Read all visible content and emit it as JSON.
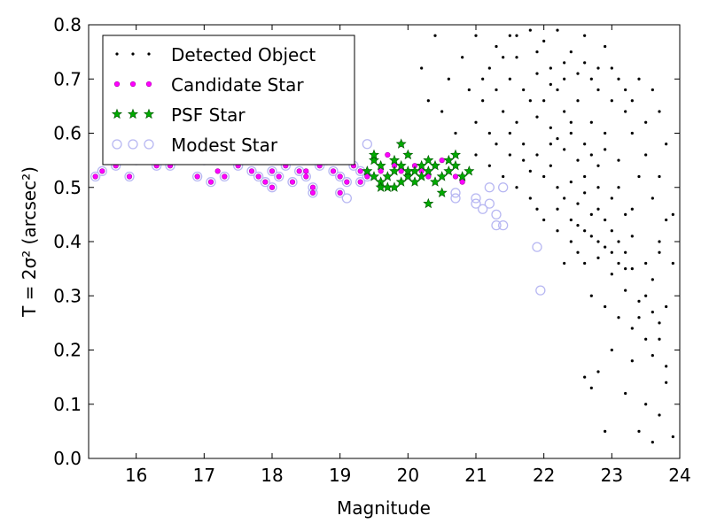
{
  "chart_data": {
    "type": "scatter",
    "xlabel": "Magnitude",
    "ylabel": "T = 2σ² (arcsec²)",
    "xlim": [
      15.3,
      24.0
    ],
    "ylim": [
      0.0,
      0.8
    ],
    "xticks": [
      16,
      17,
      18,
      19,
      20,
      21,
      22,
      23,
      24
    ],
    "yticks": [
      0.0,
      0.1,
      0.2,
      0.3,
      0.4,
      0.5,
      0.6,
      0.7,
      0.8
    ],
    "grid": false,
    "legend_position": "top-left",
    "colors": {
      "detected": "#000000",
      "candidate": "#ff00ff",
      "psf": "#00aa00",
      "modest": "#b7b7f2"
    },
    "series": [
      {
        "name": "Detected Object",
        "marker": "dot",
        "points": [
          [
            21.0,
            0.78
          ],
          [
            21.3,
            0.76
          ],
          [
            21.6,
            0.74
          ],
          [
            21.8,
            0.79
          ],
          [
            22.0,
            0.77
          ],
          [
            22.2,
            0.79
          ],
          [
            22.6,
            0.78
          ],
          [
            22.9,
            0.76
          ],
          [
            21.2,
            0.72
          ],
          [
            21.5,
            0.7
          ],
          [
            21.7,
            0.68
          ],
          [
            21.9,
            0.71
          ],
          [
            22.1,
            0.69
          ],
          [
            22.3,
            0.73
          ],
          [
            22.5,
            0.71
          ],
          [
            22.7,
            0.7
          ],
          [
            23.0,
            0.72
          ],
          [
            23.2,
            0.68
          ],
          [
            20.4,
            0.78
          ],
          [
            20.8,
            0.74
          ],
          [
            21.1,
            0.66
          ],
          [
            21.4,
            0.64
          ],
          [
            21.6,
            0.62
          ],
          [
            21.9,
            0.63
          ],
          [
            22.1,
            0.61
          ],
          [
            22.2,
            0.59
          ],
          [
            22.3,
            0.57
          ],
          [
            22.4,
            0.6
          ],
          [
            22.5,
            0.55
          ],
          [
            22.6,
            0.58
          ],
          [
            22.7,
            0.56
          ],
          [
            22.8,
            0.54
          ],
          [
            22.9,
            0.57
          ],
          [
            23.1,
            0.55
          ],
          [
            23.3,
            0.6
          ],
          [
            23.5,
            0.62
          ],
          [
            23.7,
            0.64
          ],
          [
            21.3,
            0.58
          ],
          [
            21.5,
            0.56
          ],
          [
            21.7,
            0.55
          ],
          [
            21.8,
            0.53
          ],
          [
            22.0,
            0.52
          ],
          [
            22.1,
            0.54
          ],
          [
            22.2,
            0.5
          ],
          [
            22.3,
            0.48
          ],
          [
            22.4,
            0.51
          ],
          [
            22.5,
            0.47
          ],
          [
            22.6,
            0.49
          ],
          [
            22.7,
            0.45
          ],
          [
            22.8,
            0.46
          ],
          [
            22.9,
            0.44
          ],
          [
            23.0,
            0.42
          ],
          [
            23.1,
            0.4
          ],
          [
            23.2,
            0.38
          ],
          [
            23.3,
            0.41
          ],
          [
            23.5,
            0.36
          ],
          [
            23.7,
            0.4
          ],
          [
            22.0,
            0.44
          ],
          [
            22.2,
            0.42
          ],
          [
            22.4,
            0.4
          ],
          [
            22.5,
            0.38
          ],
          [
            22.6,
            0.36
          ],
          [
            22.8,
            0.37
          ],
          [
            23.0,
            0.34
          ],
          [
            23.2,
            0.31
          ],
          [
            23.4,
            0.29
          ],
          [
            23.6,
            0.33
          ],
          [
            22.7,
            0.3
          ],
          [
            22.9,
            0.28
          ],
          [
            23.1,
            0.26
          ],
          [
            23.3,
            0.24
          ],
          [
            23.5,
            0.22
          ],
          [
            23.7,
            0.25
          ],
          [
            23.0,
            0.2
          ],
          [
            23.3,
            0.18
          ],
          [
            23.6,
            0.19
          ],
          [
            22.6,
            0.15
          ],
          [
            22.7,
            0.13
          ],
          [
            22.8,
            0.16
          ],
          [
            23.2,
            0.12
          ],
          [
            23.5,
            0.1
          ],
          [
            23.7,
            0.08
          ],
          [
            22.9,
            0.05
          ],
          [
            23.4,
            0.05
          ],
          [
            23.6,
            0.03
          ],
          [
            23.9,
            0.04
          ],
          [
            23.8,
            0.17
          ],
          [
            23.7,
            0.22
          ],
          [
            23.8,
            0.28
          ],
          [
            23.9,
            0.45
          ],
          [
            23.8,
            0.58
          ],
          [
            20.6,
            0.7
          ],
          [
            20.9,
            0.68
          ],
          [
            21.0,
            0.62
          ],
          [
            21.2,
            0.6
          ],
          [
            20.5,
            0.64
          ],
          [
            20.7,
            0.6
          ],
          [
            21.0,
            0.56
          ],
          [
            21.2,
            0.54
          ],
          [
            21.4,
            0.52
          ],
          [
            21.6,
            0.5
          ],
          [
            21.8,
            0.48
          ],
          [
            21.9,
            0.46
          ],
          [
            22.1,
            0.58
          ],
          [
            22.3,
            0.64
          ],
          [
            22.5,
            0.66
          ],
          [
            22.7,
            0.62
          ],
          [
            22.9,
            0.6
          ],
          [
            23.1,
            0.5
          ],
          [
            23.3,
            0.46
          ],
          [
            23.4,
            0.52
          ],
          [
            23.6,
            0.48
          ],
          [
            23.8,
            0.44
          ],
          [
            21.1,
            0.7
          ],
          [
            21.4,
            0.74
          ],
          [
            21.6,
            0.78
          ],
          [
            21.9,
            0.75
          ],
          [
            22.4,
            0.75
          ],
          [
            22.8,
            0.72
          ],
          [
            23.0,
            0.66
          ],
          [
            23.2,
            0.64
          ],
          [
            23.4,
            0.7
          ],
          [
            23.6,
            0.68
          ],
          [
            20.2,
            0.72
          ],
          [
            20.3,
            0.66
          ],
          [
            22.3,
            0.36
          ],
          [
            22.5,
            0.43
          ],
          [
            22.7,
            0.41
          ],
          [
            22.9,
            0.39
          ],
          [
            23.1,
            0.36
          ],
          [
            23.3,
            0.35
          ],
          [
            23.5,
            0.3
          ],
          [
            23.7,
            0.38
          ],
          [
            21.9,
            0.56
          ],
          [
            22.0,
            0.66
          ],
          [
            22.2,
            0.68
          ],
          [
            22.4,
            0.62
          ],
          [
            22.6,
            0.52
          ],
          [
            22.8,
            0.5
          ],
          [
            23.0,
            0.48
          ],
          [
            23.2,
            0.45
          ],
          [
            21.3,
            0.68
          ],
          [
            21.5,
            0.6
          ],
          [
            21.7,
            0.58
          ],
          [
            21.5,
            0.78
          ],
          [
            21.8,
            0.66
          ],
          [
            22.1,
            0.72
          ],
          [
            22.3,
            0.7
          ],
          [
            22.6,
            0.73
          ],
          [
            22.8,
            0.68
          ],
          [
            23.1,
            0.7
          ],
          [
            23.3,
            0.66
          ],
          [
            23.5,
            0.56
          ],
          [
            23.7,
            0.52
          ],
          [
            22.2,
            0.46
          ],
          [
            22.4,
            0.44
          ],
          [
            22.6,
            0.42
          ],
          [
            22.8,
            0.4
          ],
          [
            23.0,
            0.38
          ],
          [
            23.2,
            0.35
          ],
          [
            23.4,
            0.26
          ],
          [
            23.6,
            0.27
          ],
          [
            23.8,
            0.14
          ],
          [
            23.9,
            0.36
          ]
        ]
      },
      {
        "name": "Candidate Star",
        "marker": "small-circle",
        "points": [
          [
            15.4,
            0.52
          ],
          [
            15.5,
            0.53
          ],
          [
            15.7,
            0.54
          ],
          [
            15.9,
            0.52
          ],
          [
            16.0,
            0.55
          ],
          [
            16.3,
            0.54
          ],
          [
            16.5,
            0.54
          ],
          [
            16.9,
            0.52
          ],
          [
            17.0,
            0.55
          ],
          [
            17.1,
            0.51
          ],
          [
            17.3,
            0.52
          ],
          [
            17.5,
            0.54
          ],
          [
            17.7,
            0.53
          ],
          [
            17.8,
            0.52
          ],
          [
            17.9,
            0.51
          ],
          [
            18.0,
            0.53
          ],
          [
            18.1,
            0.52
          ],
          [
            18.2,
            0.54
          ],
          [
            18.3,
            0.51
          ],
          [
            18.4,
            0.53
          ],
          [
            18.5,
            0.52
          ],
          [
            18.6,
            0.5
          ],
          [
            18.6,
            0.49
          ],
          [
            18.7,
            0.54
          ],
          [
            18.8,
            0.55
          ],
          [
            18.9,
            0.53
          ],
          [
            19.0,
            0.52
          ],
          [
            19.1,
            0.51
          ],
          [
            19.2,
            0.54
          ],
          [
            19.3,
            0.53
          ],
          [
            19.4,
            0.52
          ],
          [
            19.5,
            0.55
          ],
          [
            19.6,
            0.53
          ],
          [
            19.7,
            0.52
          ],
          [
            19.8,
            0.54
          ],
          [
            19.9,
            0.53
          ],
          [
            20.0,
            0.52
          ],
          [
            20.1,
            0.54
          ],
          [
            20.2,
            0.53
          ],
          [
            20.3,
            0.52
          ],
          [
            20.4,
            0.54
          ],
          [
            20.5,
            0.55
          ],
          [
            20.6,
            0.53
          ],
          [
            20.7,
            0.52
          ],
          [
            20.8,
            0.51
          ],
          [
            17.2,
            0.53
          ],
          [
            17.6,
            0.55
          ],
          [
            18.5,
            0.53
          ],
          [
            19.0,
            0.49
          ],
          [
            19.3,
            0.51
          ],
          [
            18.0,
            0.5
          ],
          [
            19.7,
            0.56
          ],
          [
            19.9,
            0.58
          ],
          [
            20.0,
            0.56
          ]
        ]
      },
      {
        "name": "PSF Star",
        "marker": "star",
        "points": [
          [
            19.4,
            0.53
          ],
          [
            19.5,
            0.52
          ],
          [
            19.5,
            0.55
          ],
          [
            19.6,
            0.51
          ],
          [
            19.6,
            0.54
          ],
          [
            19.7,
            0.52
          ],
          [
            19.7,
            0.5
          ],
          [
            19.8,
            0.53
          ],
          [
            19.8,
            0.55
          ],
          [
            19.9,
            0.51
          ],
          [
            19.9,
            0.54
          ],
          [
            19.9,
            0.58
          ],
          [
            20.0,
            0.52
          ],
          [
            20.0,
            0.56
          ],
          [
            20.1,
            0.53
          ],
          [
            20.1,
            0.51
          ],
          [
            20.2,
            0.54
          ],
          [
            20.2,
            0.52
          ],
          [
            20.3,
            0.55
          ],
          [
            20.3,
            0.53
          ],
          [
            20.4,
            0.51
          ],
          [
            20.4,
            0.54
          ],
          [
            20.5,
            0.52
          ],
          [
            20.6,
            0.55
          ],
          [
            20.6,
            0.53
          ],
          [
            20.7,
            0.56
          ],
          [
            20.7,
            0.54
          ],
          [
            20.8,
            0.52
          ],
          [
            20.3,
            0.47
          ],
          [
            20.5,
            0.49
          ],
          [
            19.6,
            0.5
          ],
          [
            19.8,
            0.5
          ],
          [
            20.0,
            0.53
          ],
          [
            19.5,
            0.56
          ],
          [
            20.9,
            0.53
          ]
        ]
      },
      {
        "name": "Modest Star",
        "marker": "ring",
        "points": [
          [
            15.4,
            0.52
          ],
          [
            15.5,
            0.53
          ],
          [
            15.7,
            0.54
          ],
          [
            15.9,
            0.52
          ],
          [
            16.0,
            0.55
          ],
          [
            16.3,
            0.54
          ],
          [
            16.5,
            0.54
          ],
          [
            16.9,
            0.52
          ],
          [
            17.0,
            0.55
          ],
          [
            17.1,
            0.51
          ],
          [
            17.3,
            0.52
          ],
          [
            17.5,
            0.54
          ],
          [
            17.7,
            0.53
          ],
          [
            17.8,
            0.52
          ],
          [
            17.9,
            0.51
          ],
          [
            18.0,
            0.53
          ],
          [
            18.1,
            0.52
          ],
          [
            18.2,
            0.54
          ],
          [
            18.3,
            0.51
          ],
          [
            18.4,
            0.53
          ],
          [
            18.5,
            0.52
          ],
          [
            18.6,
            0.5
          ],
          [
            18.6,
            0.49
          ],
          [
            18.7,
            0.54
          ],
          [
            18.8,
            0.55
          ],
          [
            18.9,
            0.53
          ],
          [
            19.0,
            0.52
          ],
          [
            19.1,
            0.51
          ],
          [
            19.2,
            0.54
          ],
          [
            19.3,
            0.53
          ],
          [
            19.4,
            0.52
          ],
          [
            19.1,
            0.48
          ],
          [
            19.4,
            0.58
          ],
          [
            20.7,
            0.49
          ],
          [
            20.7,
            0.48
          ],
          [
            21.0,
            0.48
          ],
          [
            21.0,
            0.47
          ],
          [
            21.1,
            0.46
          ],
          [
            21.2,
            0.47
          ],
          [
            21.2,
            0.5
          ],
          [
            21.3,
            0.45
          ],
          [
            21.3,
            0.43
          ],
          [
            21.4,
            0.5
          ],
          [
            21.4,
            0.43
          ],
          [
            21.9,
            0.39
          ],
          [
            21.95,
            0.31
          ],
          [
            18.0,
            0.5
          ],
          [
            19.0,
            0.49
          ],
          [
            19.3,
            0.51
          ]
        ]
      }
    ]
  }
}
